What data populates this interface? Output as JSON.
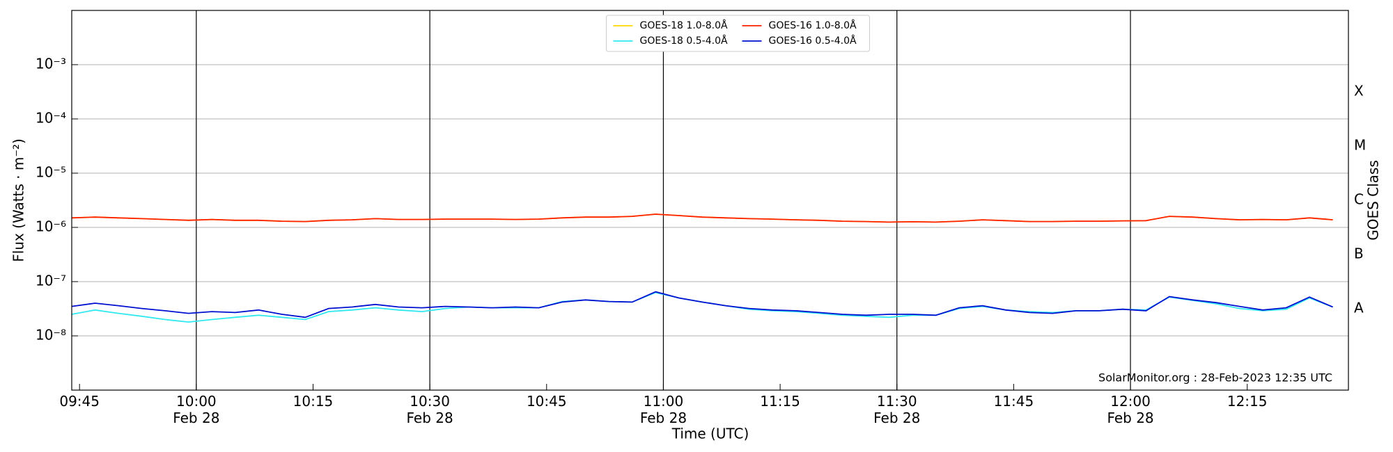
{
  "chart_data": {
    "type": "line",
    "y_label": "Flux (Watts · m⁻²)",
    "x_label": "Time (UTC)",
    "y2_label": "GOES Class",
    "annotation": "SolarMonitor.org : 28-Feb-2023 12:35 UTC",
    "y_scale": "log",
    "legend": "upper center",
    "grid": true,
    "xlim": [
      "09:44",
      "12:28"
    ],
    "xticks": [
      {
        "value": "09:45",
        "label": "09:45"
      },
      {
        "value": "10:00",
        "label": "10:00\nFeb 28"
      },
      {
        "value": "10:15",
        "label": "10:15"
      },
      {
        "value": "10:30",
        "label": "10:30\nFeb 28"
      },
      {
        "value": "10:45",
        "label": "10:45"
      },
      {
        "value": "11:00",
        "label": "11:00\nFeb 28"
      },
      {
        "value": "11:15",
        "label": "11:15"
      },
      {
        "value": "11:30",
        "label": "11:30\nFeb 28"
      },
      {
        "value": "11:45",
        "label": "11:45"
      },
      {
        "value": "12:00",
        "label": "12:00\nFeb 28"
      },
      {
        "value": "12:15",
        "label": "12:15"
      }
    ],
    "ylim": [
      1e-09,
      0.01
    ],
    "yticks": [
      {
        "value": 1e-08,
        "label": "10⁻⁸"
      },
      {
        "value": 1e-07,
        "label": "10⁻⁷"
      },
      {
        "value": 1e-06,
        "label": "10⁻⁶"
      },
      {
        "value": 1e-05,
        "label": "10⁻⁵"
      },
      {
        "value": 0.0001,
        "label": "10⁻⁴"
      },
      {
        "value": 0.001,
        "label": "10⁻³"
      }
    ],
    "y2lim": [
      1e-09,
      0.01
    ],
    "y2ticks": [
      {
        "value": 3.16e-08,
        "label": "A"
      },
      {
        "value": 3.16e-07,
        "label": "B"
      },
      {
        "value": 3.16e-06,
        "label": "C"
      },
      {
        "value": 3.16e-05,
        "label": "M"
      },
      {
        "value": 0.000316,
        "label": "X"
      }
    ],
    "x": [
      "09:44",
      "09:47",
      "09:50",
      "09:53",
      "09:56",
      "09:59",
      "10:02",
      "10:05",
      "10:08",
      "10:11",
      "10:14",
      "10:17",
      "10:20",
      "10:23",
      "10:26",
      "10:29",
      "10:32",
      "10:35",
      "10:38",
      "10:41",
      "10:44",
      "10:47",
      "10:50",
      "10:53",
      "10:56",
      "10:59",
      "11:02",
      "11:05",
      "11:08",
      "11:11",
      "11:14",
      "11:17",
      "11:20",
      "11:23",
      "11:26",
      "11:29",
      "11:32",
      "11:35",
      "11:38",
      "11:41",
      "11:44",
      "11:47",
      "11:50",
      "11:53",
      "11:56",
      "11:59",
      "12:02",
      "12:05",
      "12:08",
      "12:11",
      "12:14",
      "12:17",
      "12:20",
      "12:23",
      "12:26"
    ],
    "series": [
      {
        "name": "GOES-18 1.0-8.0Å",
        "color": "#ffd700",
        "values": [
          1.5e-06,
          1.55e-06,
          1.5e-06,
          1.45e-06,
          1.4e-06,
          1.35e-06,
          1.4e-06,
          1.35e-06,
          1.35e-06,
          1.3e-06,
          1.28e-06,
          1.35e-06,
          1.38e-06,
          1.45e-06,
          1.4e-06,
          1.4e-06,
          1.42e-06,
          1.42e-06,
          1.42e-06,
          1.4e-06,
          1.42e-06,
          1.5e-06,
          1.55e-06,
          1.55e-06,
          1.6e-06,
          1.75e-06,
          1.65e-06,
          1.55e-06,
          1.5e-06,
          1.45e-06,
          1.42e-06,
          1.38e-06,
          1.35e-06,
          1.3e-06,
          1.28e-06,
          1.25e-06,
          1.27e-06,
          1.25e-06,
          1.3e-06,
          1.38e-06,
          1.33e-06,
          1.28e-06,
          1.28e-06,
          1.3e-06,
          1.3e-06,
          1.32e-06,
          1.33e-06,
          1.6e-06,
          1.55e-06,
          1.45e-06,
          1.38e-06,
          1.4e-06,
          1.38e-06,
          1.5e-06,
          1.38e-06
        ]
      },
      {
        "name": "GOES-18 0.5-4.0Å",
        "color": "#30e8f0",
        "values": [
          2.5e-08,
          3e-08,
          2.6e-08,
          2.3e-08,
          2e-08,
          1.8e-08,
          2e-08,
          2.2e-08,
          2.4e-08,
          2.2e-08,
          2e-08,
          2.8e-08,
          3e-08,
          3.3e-08,
          3e-08,
          2.8e-08,
          3.2e-08,
          3.4e-08,
          3.3e-08,
          3.3e-08,
          3.3e-08,
          4.3e-08,
          4.6e-08,
          4.3e-08,
          4.2e-08,
          6.3e-08,
          5e-08,
          4.2e-08,
          3.6e-08,
          3.1e-08,
          2.9e-08,
          2.8e-08,
          2.6e-08,
          2.4e-08,
          2.3e-08,
          2.2e-08,
          2.4e-08,
          2.4e-08,
          3.2e-08,
          3.5e-08,
          3e-08,
          2.8e-08,
          2.7e-08,
          2.9e-08,
          2.9e-08,
          3.1e-08,
          3e-08,
          5.2e-08,
          4.5e-08,
          3.9e-08,
          3.2e-08,
          2.9e-08,
          3.1e-08,
          5e-08,
          3.4e-08
        ]
      },
      {
        "name": "GOES-16 1.0-8.0Å",
        "color": "#ff2000",
        "values": [
          1.5e-06,
          1.55e-06,
          1.5e-06,
          1.45e-06,
          1.4e-06,
          1.35e-06,
          1.4e-06,
          1.35e-06,
          1.35e-06,
          1.3e-06,
          1.28e-06,
          1.35e-06,
          1.38e-06,
          1.45e-06,
          1.4e-06,
          1.4e-06,
          1.42e-06,
          1.42e-06,
          1.42e-06,
          1.4e-06,
          1.42e-06,
          1.5e-06,
          1.55e-06,
          1.55e-06,
          1.6e-06,
          1.75e-06,
          1.65e-06,
          1.55e-06,
          1.5e-06,
          1.45e-06,
          1.42e-06,
          1.38e-06,
          1.35e-06,
          1.3e-06,
          1.28e-06,
          1.25e-06,
          1.27e-06,
          1.25e-06,
          1.3e-06,
          1.38e-06,
          1.33e-06,
          1.28e-06,
          1.28e-06,
          1.3e-06,
          1.3e-06,
          1.32e-06,
          1.33e-06,
          1.6e-06,
          1.55e-06,
          1.45e-06,
          1.38e-06,
          1.4e-06,
          1.38e-06,
          1.5e-06,
          1.38e-06
        ]
      },
      {
        "name": "GOES-16 0.5-4.0Å",
        "color": "#0010d0",
        "values": [
          3.5e-08,
          4e-08,
          3.6e-08,
          3.2e-08,
          2.9e-08,
          2.6e-08,
          2.8e-08,
          2.7e-08,
          3e-08,
          2.5e-08,
          2.2e-08,
          3.2e-08,
          3.4e-08,
          3.8e-08,
          3.4e-08,
          3.3e-08,
          3.5e-08,
          3.4e-08,
          3.3e-08,
          3.4e-08,
          3.3e-08,
          4.2e-08,
          4.6e-08,
          4.3e-08,
          4.2e-08,
          6.5e-08,
          5e-08,
          4.2e-08,
          3.6e-08,
          3.2e-08,
          3e-08,
          2.9e-08,
          2.7e-08,
          2.5e-08,
          2.4e-08,
          2.5e-08,
          2.5e-08,
          2.4e-08,
          3.3e-08,
          3.6e-08,
          3e-08,
          2.7e-08,
          2.6e-08,
          2.9e-08,
          2.9e-08,
          3.1e-08,
          2.9e-08,
          5.3e-08,
          4.6e-08,
          4.1e-08,
          3.5e-08,
          3e-08,
          3.3e-08,
          5.2e-08,
          3.4e-08
        ]
      }
    ]
  }
}
